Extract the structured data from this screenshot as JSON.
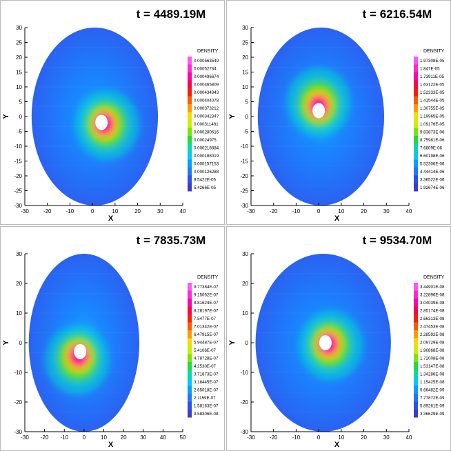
{
  "chart_data": [
    {
      "type": "heatmap",
      "title": "t = 4489.19M",
      "xlabel": "X",
      "ylabel": "Y",
      "xlim": [
        -30,
        40
      ],
      "ylim": [
        -30,
        30
      ],
      "xticks": [
        "-30",
        "-20",
        "-10",
        "0",
        "10",
        "20",
        "30",
        "40"
      ],
      "yticks": [
        "30",
        "25",
        "20",
        "15",
        "10",
        "5",
        "0",
        "-5",
        "-10",
        "-15",
        "-20",
        "-25",
        "-30"
      ],
      "legend_title": "DENSITY",
      "legend_levels": [
        "0.000563549",
        "0.00052734",
        "0.000496674",
        "0.000465809",
        "0.000434943",
        "0.000404078",
        "0.000373212",
        "0.00034234?",
        "0.000311481",
        "0.000280616",
        "0.00024975",
        "0.000218884",
        "0.000188019",
        "0.000157153",
        "0.000126288",
        "9.5422E-05",
        "5.4266E-05"
      ],
      "hotspot": {
        "x": 4,
        "y": -2,
        "dir": "right"
      },
      "disk": {
        "cx": 1,
        "cy": 0,
        "rx": 28,
        "ry": 30
      }
    },
    {
      "type": "heatmap",
      "title": "t = 6216.54M",
      "xlabel": "X",
      "ylabel": "Y",
      "xlim": [
        -30,
        40
      ],
      "ylim": [
        -30,
        30
      ],
      "xticks": [
        "-30",
        "-20",
        "-10",
        "0",
        "10",
        "20",
        "30",
        "40"
      ],
      "yticks": [
        "30",
        "25",
        "20",
        "15",
        "10",
        "5",
        "0",
        "-5",
        "-10",
        "-15",
        "-20",
        "-25",
        "-30"
      ],
      "legend_title": "DENSITY",
      "legend_levels": [
        "1.97308E-05",
        "1.847E-05",
        "1.73911E-05",
        "1.63122E-05",
        "1.52333E-05",
        "1.41544E-05",
        "1.30755E-05",
        "1.19965E-05",
        "1.09176E-05",
        "9.83873E-06",
        "8.75981E-06",
        "7.6809E-06",
        "6.60198E-06",
        "5.52306E-06",
        "4.44414E-06",
        "3.36522E-06",
        "1.92674E-06"
      ],
      "hotspot": {
        "x": 0,
        "y": 2,
        "dir": "up"
      },
      "disk": {
        "cx": 1,
        "cy": 0,
        "rx": 28,
        "ry": 30
      }
    },
    {
      "type": "heatmap",
      "title": "t = 7835.73M",
      "xlabel": "X",
      "ylabel": "Y",
      "xlim": [
        -30,
        50
      ],
      "ylim": [
        -30,
        30
      ],
      "xticks": [
        "-30",
        "-20",
        "-10",
        "0",
        "10",
        "20",
        "30",
        "40",
        "50"
      ],
      "yticks": [
        "30",
        "20",
        "10",
        "0",
        "-10",
        "-20",
        "-30"
      ],
      "legend_title": "DENSITY",
      "legend_levels": [
        "9.77384E-07",
        "9.15052E-07",
        "8.81624E-07",
        "8.28197E-07",
        "7.5477E-07",
        "7.01342E-07",
        "6.47915E-07",
        "5.94487E-07",
        "5.4106E-07",
        "4.78728E-07",
        "4.2530E-07",
        "3.71873E-07",
        "3.18445E-07",
        "2.65018E-07",
        "2.1159E-07",
        "1.58163E-07",
        "9.58306E-08"
      ],
      "hotspot": {
        "x": -2,
        "y": -3,
        "dir": "down"
      },
      "disk": {
        "cx": 0,
        "cy": 0,
        "rx": 28,
        "ry": 30
      }
    },
    {
      "type": "heatmap",
      "title": "t = 9534.70M",
      "xlabel": "X",
      "ylabel": "Y",
      "xlim": [
        -30,
        40
      ],
      "ylim": [
        -30,
        30
      ],
      "xticks": [
        "-30",
        "-20",
        "-10",
        "0",
        "10",
        "20",
        "30",
        "40"
      ],
      "yticks": [
        "30",
        "20",
        "10",
        "0",
        "-10",
        "-20",
        "-30"
      ],
      "legend_title": "DENSITY",
      "legend_levels": [
        "3.44901E-08",
        "3.22896E-08",
        "3.04039E-08",
        "2.85174E-08",
        "2.66313E-08",
        "2.47453E-08",
        "2.28592E-08",
        "2.09729E-08",
        "1.90868E-08",
        "1.72008E-08",
        "1.53147E-08",
        "1.34286E-08",
        "1.15425E-08",
        "9.66482E-09",
        "7.77872E-09",
        "5.89261E-09",
        "3.36629E-09"
      ],
      "hotspot": {
        "x": 3,
        "y": 0,
        "dir": "right"
      },
      "disk": {
        "cx": 2,
        "cy": 0,
        "rx": 30,
        "ry": 30
      }
    }
  ]
}
